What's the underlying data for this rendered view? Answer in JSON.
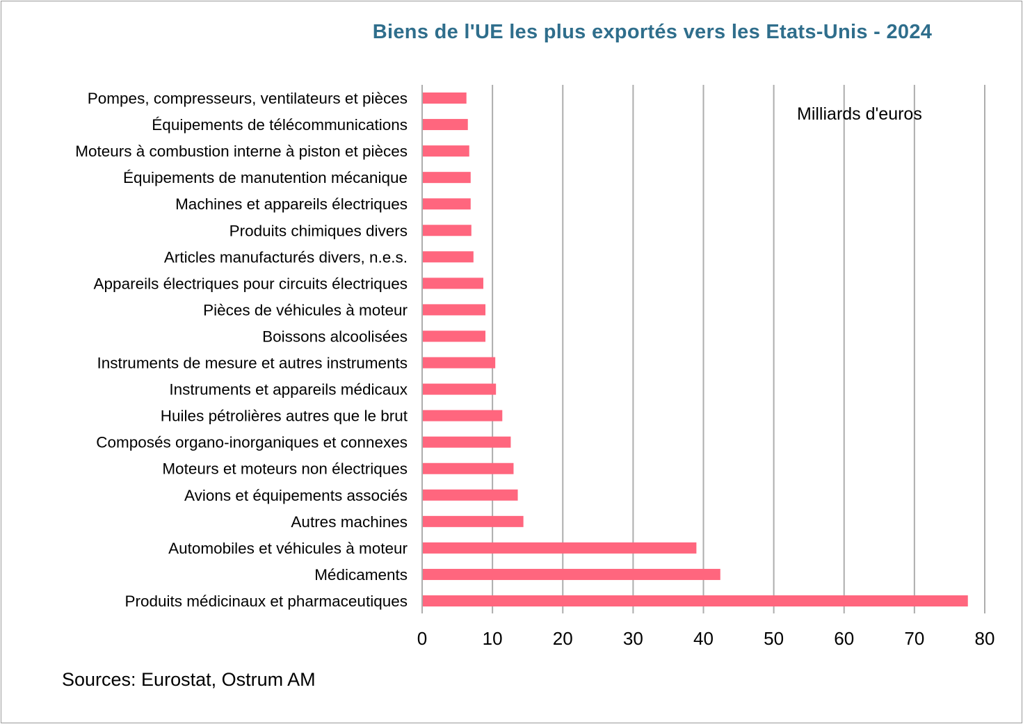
{
  "chart_data": {
    "type": "bar",
    "orientation": "horizontal",
    "title": "Biens de l'UE les plus exportés vers les Etats-Unis - 2024",
    "unit_label": "Milliards d'euros",
    "source": "Sources: Eurostat, Ostrum AM",
    "xlim": [
      0,
      80
    ],
    "xticks": [
      "0",
      "10",
      "20",
      "30",
      "40",
      "50",
      "60",
      "70",
      "80"
    ],
    "grid": "vertical",
    "bar_color": "#FF667E",
    "title_color": "#2F6E8C",
    "categories": [
      "Pompes, compresseurs, ventilateurs et pièces",
      "Équipements de télécommunications",
      "Moteurs à combustion interne à piston et pièces",
      "Équipements de manutention mécanique",
      "Machines et appareils électriques",
      "Produits chimiques divers",
      "Articles manufacturés divers, n.e.s.",
      "Appareils électriques pour circuits électriques",
      "Pièces de véhicules à moteur",
      "Boissons alcoolisées",
      "Instruments de mesure et autres instruments",
      "Instruments et appareils médicaux",
      "Huiles pétrolières autres que le brut",
      "Composés organo-inorganiques et connexes",
      "Moteurs et moteurs non électriques",
      "Avions et équipements associés",
      "Autres machines",
      "Automobiles et véhicules à moteur",
      "Médicaments",
      "Produits médicinaux et pharmaceutiques"
    ],
    "values": [
      6.3,
      6.5,
      6.7,
      6.9,
      6.9,
      7.0,
      7.3,
      8.7,
      9.0,
      9.0,
      10.4,
      10.5,
      11.4,
      12.6,
      13.0,
      13.6,
      14.4,
      39.0,
      42.4,
      77.6
    ]
  }
}
